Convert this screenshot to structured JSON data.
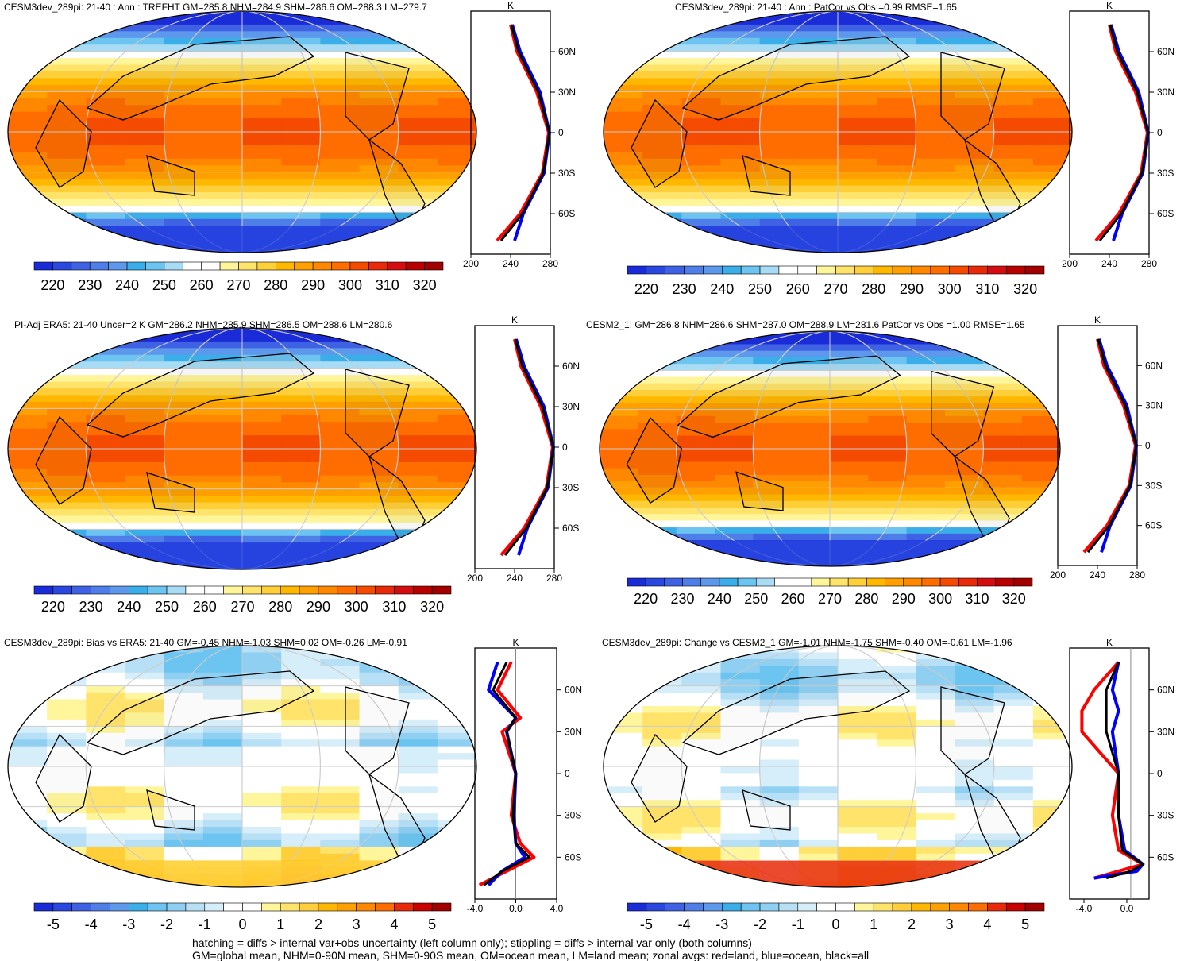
{
  "panels": [
    {
      "id": "model-abs",
      "title": "CESM3dev_289pi: 21-40 : Ann : TREFHT GM=285.8 NHM=284.9 SHM=286.6 OM=288.3 LM=279.7",
      "kind": "abs"
    },
    {
      "id": "model-abs-patcor",
      "title": "CESM3dev_289pi: 21-40 : Ann : PatCor vs Obs =0.99 RMSE=1.65",
      "kind": "abs"
    },
    {
      "id": "obs",
      "title": "PI-Adj ERA5: 21-40 Uncer=2 K GM=286.2 NHM=285.9 SHM=286.5 OM=288.6 LM=280.6",
      "kind": "abs"
    },
    {
      "id": "cesm2",
      "title": "CESM2_1: GM=286.8 NHM=286.6 SHM=287.0 OM=288.9 LM=281.6 PatCor vs Obs =1.00 RMSE=1.65",
      "kind": "abs"
    },
    {
      "id": "bias",
      "title": "CESM3dev_289pi: Bias vs ERA5: 21-40 GM=-0.45 NHM=-1.03 SHM=0.02 OM=-0.26 LM=-0.91",
      "kind": "diff"
    },
    {
      "id": "change",
      "title": "CESM3dev_289pi: Change vs CESM2_1 GM=-1.01 NHM=-1.75 SHM=-0.40 OM=-0.61 LM=-1.96",
      "kind": "diff"
    }
  ],
  "colorbars": {
    "abs": {
      "labels": [
        "220",
        "230",
        "240",
        "250",
        "260",
        "270",
        "280",
        "290",
        "300",
        "310",
        "320"
      ]
    },
    "diff": {
      "labels": [
        "-5",
        "-4",
        "-3",
        "-2",
        "-1",
        "0",
        "1",
        "2",
        "3",
        "4",
        "5"
      ]
    }
  },
  "zonal": {
    "unit": "K",
    "lat_labels": [
      "60N",
      "30N",
      "0",
      "30S",
      "60S"
    ],
    "abs_x_labels": [
      "200",
      "240",
      "280"
    ],
    "bias_x_labels": [
      "-4.0",
      "0.0",
      "4.0"
    ],
    "change_x_labels": [
      "-4.0",
      "0.0"
    ]
  },
  "footer": {
    "line1": "hatching = diffs > internal var+obs uncertainty (left column only); stippling = diffs > internal var only (both columns)",
    "line2": "GM=global mean, NHM=0-90N mean, SHM=0-90S mean, OM=ocean mean, LM=land mean; zonal avgs: red=land, blue=ocean, black=all"
  },
  "chart_data": [
    {
      "type": "heatmap",
      "title": "CESM3dev_289pi: 21-40 : Ann : TREFHT GM=285.8 NHM=284.9 SHM=286.6 OM=288.3 LM=279.7",
      "colorbar_range": [
        215,
        325
      ],
      "zonal_mean": {
        "lat": [
          80,
          60,
          30,
          0,
          -30,
          -60,
          -80
        ],
        "land": [
          250,
          258,
          283,
          298,
          290,
          262,
          233
        ],
        "ocean": [
          252,
          262,
          287,
          299,
          292,
          266,
          255
        ],
        "all": [
          251,
          260,
          285,
          299,
          291,
          265,
          238
        ],
        "xlim": [
          200,
          300
        ]
      }
    },
    {
      "type": "heatmap",
      "title": "CESM3dev_289pi: 21-40 : Ann : PatCor vs Obs =0.99 RMSE=1.65",
      "colorbar_range": [
        215,
        325
      ]
    },
    {
      "type": "heatmap",
      "title": "PI-Adj ERA5: 21-40 Uncer=2 K GM=286.2 NHM=285.9 SHM=286.5 OM=288.6 LM=280.6",
      "colorbar_range": [
        215,
        325
      ]
    },
    {
      "type": "heatmap",
      "title": "CESM2_1: GM=286.8 NHM=286.6 SHM=287.0 OM=288.9 LM=281.6 PatCor vs Obs =1.00 RMSE=1.65",
      "colorbar_range": [
        215,
        325
      ]
    },
    {
      "type": "heatmap",
      "title": "CESM3dev_289pi: Bias vs ERA5: 21-40 GM=-0.45 NHM=-1.03 SHM=0.02 OM=-0.26 LM=-0.91",
      "colorbar_range": [
        -5.5,
        5.5
      ],
      "zonal_mean": {
        "lat": [
          80,
          60,
          40,
          30,
          0,
          -30,
          -50,
          -60,
          -70,
          -80
        ],
        "land": [
          -0.5,
          -2,
          0.5,
          -1.5,
          0,
          -0.5,
          0.5,
          2,
          -1,
          -4
        ],
        "ocean": [
          -2,
          -3,
          0,
          -1,
          0,
          -0.2,
          0,
          1,
          -1.5,
          -3
        ],
        "all": [
          -1,
          -2.5,
          0,
          -1,
          0,
          -0.3,
          0,
          1.5,
          -1.5,
          -3.5
        ],
        "xlim": [
          -4.5,
          4.5
        ]
      }
    },
    {
      "type": "heatmap",
      "title": "CESM3dev_289pi: Change vs CESM2_1 GM=-1.01 NHM=-1.75 SHM=-0.40 OM=-0.61 LM=-1.96",
      "colorbar_range": [
        -5.5,
        5.5
      ],
      "zonal_mean": {
        "lat": [
          80,
          60,
          45,
          30,
          0,
          -30,
          -55,
          -65,
          -70,
          -75
        ],
        "land": [
          -1,
          -3,
          -4,
          -4,
          -1,
          -1.5,
          -1,
          1,
          -1,
          -3
        ],
        "ocean": [
          -1,
          -1.5,
          -1,
          -1.5,
          -1,
          -1,
          -0.5,
          1,
          0.5,
          -3
        ],
        "all": [
          -1,
          -2,
          -2,
          -2,
          -1,
          -1,
          -0.7,
          1,
          0,
          -2
        ],
        "xlim": [
          -5,
          1.5
        ]
      }
    }
  ]
}
